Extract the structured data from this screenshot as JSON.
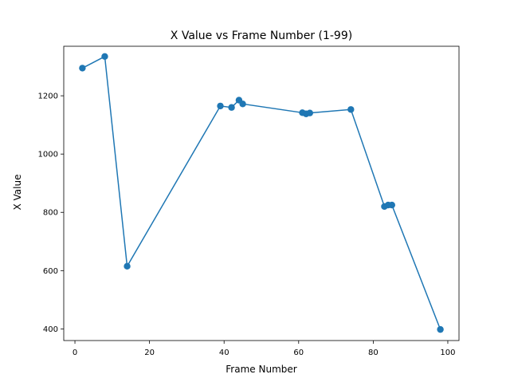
{
  "chart_data": {
    "type": "line",
    "title": "X Value vs Frame Number (1-99)",
    "xlabel": "Frame Number",
    "ylabel": "X Value",
    "xlim": [
      -3,
      103
    ],
    "ylim": [
      360,
      1370
    ],
    "xticks": [
      0,
      20,
      40,
      60,
      80,
      100
    ],
    "yticks": [
      400,
      600,
      800,
      1000,
      1200
    ],
    "grid": false,
    "markers": true,
    "color": "#1f77b4",
    "series": [
      {
        "x": [
          2,
          8,
          14,
          39,
          42,
          44,
          45,
          61,
          62,
          63,
          74,
          83,
          84,
          85,
          98
        ],
        "y": [
          1295,
          1335,
          615,
          1165,
          1160,
          1185,
          1172,
          1142,
          1138,
          1141,
          1153,
          820,
          825,
          825,
          398
        ]
      }
    ]
  }
}
